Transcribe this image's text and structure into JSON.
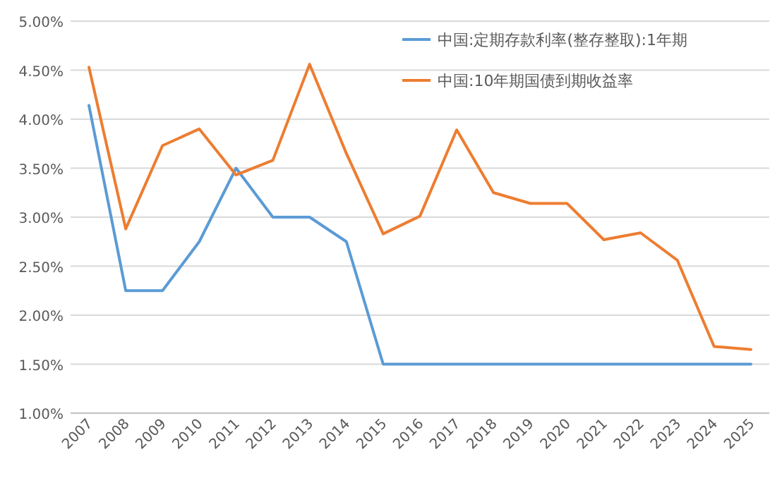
{
  "chart_data": {
    "type": "line",
    "categories": [
      "2007",
      "2008",
      "2009",
      "2010",
      "2011",
      "2012",
      "2013",
      "2014",
      "2015",
      "2016",
      "2017",
      "2018",
      "2019",
      "2020",
      "2021",
      "2022",
      "2023",
      "2024",
      "2025"
    ],
    "series": [
      {
        "name": "中国:定期存款利率(整存整取):1年期",
        "color": "#5b9bd5",
        "values": [
          4.14,
          2.25,
          2.25,
          2.75,
          3.5,
          3.0,
          3.0,
          2.75,
          1.5,
          1.5,
          1.5,
          1.5,
          1.5,
          1.5,
          1.5,
          1.5,
          1.5,
          1.5,
          1.5
        ]
      },
      {
        "name": "中国:10年期国债到期收益率",
        "color": "#ed7d31",
        "values": [
          4.53,
          2.88,
          3.73,
          3.9,
          3.43,
          3.58,
          4.56,
          3.65,
          2.83,
          3.01,
          3.89,
          3.25,
          3.14,
          3.14,
          2.77,
          2.84,
          2.56,
          1.68,
          1.65
        ]
      }
    ],
    "ylim": [
      1,
      5
    ],
    "yticks": [
      {
        "value": 1,
        "label": "1.00%"
      },
      {
        "value": 1.5,
        "label": "1.50%"
      },
      {
        "value": 2,
        "label": "2.00%"
      },
      {
        "value": 2.5,
        "label": "2.50%"
      },
      {
        "value": 3,
        "label": "3.00%"
      },
      {
        "value": 3.5,
        "label": "3.50%"
      },
      {
        "value": 4,
        "label": "4.00%"
      },
      {
        "value": 4.5,
        "label": "4.50%"
      },
      {
        "value": 5,
        "label": "5.00%"
      }
    ],
    "grid": "y",
    "legend": "top right",
    "line_style": "solid",
    "marker": "none"
  }
}
